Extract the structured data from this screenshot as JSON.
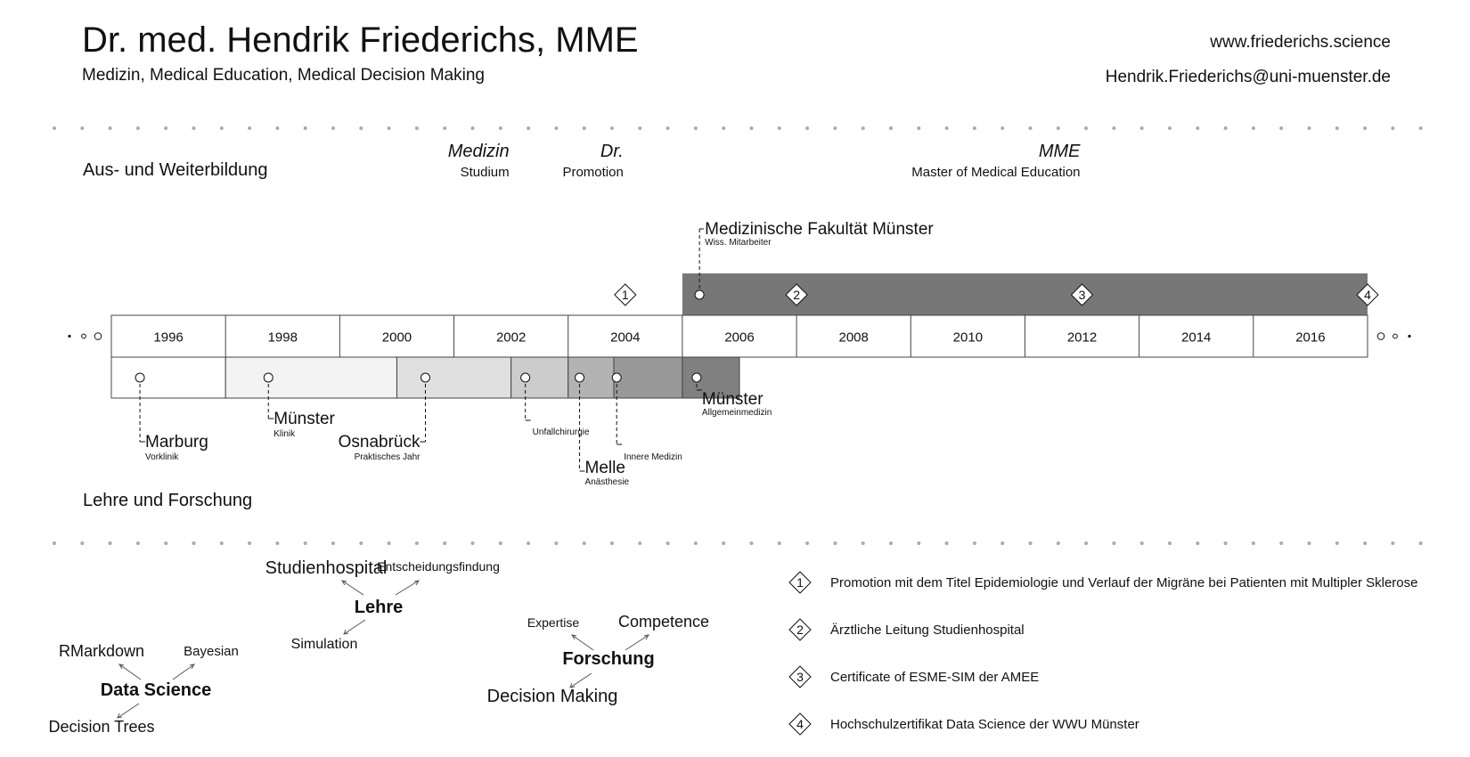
{
  "header": {
    "name": "Dr. med. Hendrik Friederichs, MME",
    "subtitle": "Medizin, Medical Education, Medical Decision Making",
    "website": "www.friederichs.science",
    "email": "Hendrik.Friederichs@uni-muenster.de"
  },
  "sections": {
    "education": "Aus- und Weiterbildung",
    "teaching": "Lehre und Forschung"
  },
  "degrees": [
    {
      "title": "Medizin",
      "sub": "Studium",
      "year": 2002
    },
    {
      "title": "Dr.",
      "sub": "Promotion",
      "year": 2004
    },
    {
      "title": "MME",
      "sub": "Master of Medical Education",
      "year": 2012
    }
  ],
  "timeline": {
    "start_year": 1995,
    "end_year": 2017,
    "years": [
      "1996",
      "1998",
      "2000",
      "2002",
      "2004",
      "2006",
      "2008",
      "2010",
      "2012",
      "2014",
      "2016"
    ]
  },
  "upper_track": {
    "start": 2005.0,
    "end": 2018.0,
    "color": "#777777",
    "place": "Medizinische Fakultät Münster",
    "role": "Wiss. Mitarbeiter",
    "marker_at": 2005.3
  },
  "milestones": [
    {
      "num": "1",
      "at": 2004.0,
      "style": "outline"
    },
    {
      "num": "2",
      "at": 2007.0,
      "style": "filled"
    },
    {
      "num": "3",
      "at": 2012.0,
      "style": "filled"
    },
    {
      "num": "4",
      "at": 2017.0,
      "style": "filled"
    }
  ],
  "lower_segments": [
    {
      "start": 1995.0,
      "end": 1997.0,
      "color": "#ffffff"
    },
    {
      "start": 1997.0,
      "end": 2000.0,
      "color": "#f3f3f3"
    },
    {
      "start": 2000.0,
      "end": 2002.0,
      "color": "#e0e0e0"
    },
    {
      "start": 2002.0,
      "end": 2003.0,
      "color": "#cccccc"
    },
    {
      "start": 2003.0,
      "end": 2003.8,
      "color": "#b3b3b3"
    },
    {
      "start": 2003.8,
      "end": 2005.0,
      "color": "#999999"
    },
    {
      "start": 2005.0,
      "end": 2006.0,
      "color": "#808080"
    }
  ],
  "stations": [
    {
      "place": "Marburg",
      "role": "Vorklinik",
      "at": 1995.5
    },
    {
      "place": "Münster",
      "role": "Klinik",
      "at": 1997.75
    },
    {
      "place": "Osnabrück",
      "role": "Praktisches Jahr",
      "at": 2000.5
    },
    {
      "place": "",
      "role": "Unfallchirurgie",
      "at": 2002.25
    },
    {
      "place": "Melle",
      "role": "Anästhesie",
      "at": 2003.2
    },
    {
      "place": "",
      "role": "Innere Medizin",
      "at": 2003.85
    },
    {
      "place": "Münster",
      "role": "Allgemeinmedizin",
      "at": 2005.25
    }
  ],
  "clusters": {
    "lehre": {
      "center": "Lehre",
      "items": [
        "Studienhospital",
        "Entscheidungsfindung",
        "Simulation"
      ]
    },
    "data_science": {
      "center": "Data Science",
      "items": [
        "RMarkdown",
        "Bayesian",
        "Decision Trees"
      ]
    },
    "forschung": {
      "center": "Forschung",
      "items": [
        "Expertise",
        "Competence",
        "Decision Making"
      ]
    }
  },
  "legend": [
    {
      "num": "1",
      "text": "Promotion mit dem Titel Epidemiologie und Verlauf der Migräne bei Patienten mit Multipler Sklerose"
    },
    {
      "num": "2",
      "text": "Ärztliche Leitung Studienhospital"
    },
    {
      "num": "3",
      "text": "Certificate of ESME-SIM der AMEE"
    },
    {
      "num": "4",
      "text": "Hochschulzertifikat Data Science der WWU Münster"
    }
  ]
}
